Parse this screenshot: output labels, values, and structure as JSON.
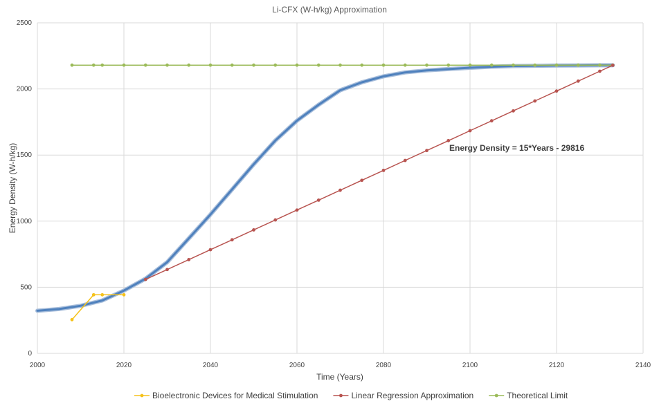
{
  "chart_data": {
    "type": "line",
    "title": "Li-CFX (W-h/kg) Approximation",
    "xlabel": "Time (Years)",
    "ylabel": "Energy Density (W-h/kg)",
    "xlim": [
      2000,
      2140
    ],
    "ylim": [
      0,
      2500
    ],
    "xticks": [
      2000,
      2020,
      2040,
      2060,
      2080,
      2100,
      2120,
      2140
    ],
    "yticks": [
      0,
      500,
      1000,
      1500,
      2000,
      2500
    ],
    "grid": true,
    "legend_position": "bottom",
    "annotation": "Energy Density = 15*Years - 29816",
    "series": [
      {
        "name": "Bioelectronic Devices for Medical Stimulation",
        "color": "#f5c21b",
        "marker": "circle",
        "x": [
          2008,
          2013,
          2015,
          2020
        ],
        "y": [
          255,
          443,
          443,
          443
        ]
      },
      {
        "name": "Linear Regression Approximation",
        "color": "#b85450",
        "marker": "circle",
        "x": [
          2025,
          2030,
          2035,
          2040,
          2045,
          2050,
          2055,
          2060,
          2065,
          2070,
          2075,
          2080,
          2085,
          2090,
          2095,
          2100,
          2105,
          2110,
          2115,
          2120,
          2125,
          2130,
          2133
        ],
        "y": [
          559,
          634,
          709,
          784,
          859,
          934,
          1009,
          1084,
          1159,
          1234,
          1309,
          1384,
          1459,
          1534,
          1609,
          1684,
          1759,
          1834,
          1909,
          1984,
          2059,
          2134,
          2179
        ]
      },
      {
        "name": "Theoretical Limit",
        "color": "#9bbb59",
        "marker": "circle",
        "x": [
          2008,
          2013,
          2015,
          2020,
          2025,
          2030,
          2035,
          2040,
          2045,
          2050,
          2055,
          2060,
          2065,
          2070,
          2075,
          2080,
          2085,
          2090,
          2095,
          2100,
          2105,
          2110,
          2115,
          2120,
          2125,
          2130,
          2133
        ],
        "y": [
          2180,
          2180,
          2180,
          2180,
          2180,
          2180,
          2180,
          2180,
          2180,
          2180,
          2180,
          2180,
          2180,
          2180,
          2180,
          2180,
          2180,
          2180,
          2180,
          2180,
          2180,
          2180,
          2180,
          2180,
          2180,
          2180,
          2180
        ]
      },
      {
        "color": "#4f81bd",
        "marker": "none",
        "x": [
          2000,
          2005,
          2010,
          2015,
          2020,
          2025,
          2030,
          2035,
          2040,
          2045,
          2050,
          2055,
          2060,
          2065,
          2070,
          2075,
          2080,
          2085,
          2090,
          2095,
          2100,
          2105,
          2110,
          2115,
          2120,
          2125,
          2130,
          2133
        ],
        "y": [
          322,
          335,
          360,
          400,
          475,
          565,
          690,
          870,
          1050,
          1240,
          1430,
          1610,
          1760,
          1880,
          1990,
          2050,
          2095,
          2125,
          2140,
          2150,
          2160,
          2168,
          2173,
          2175,
          2177,
          2178,
          2179,
          2179
        ]
      }
    ]
  }
}
